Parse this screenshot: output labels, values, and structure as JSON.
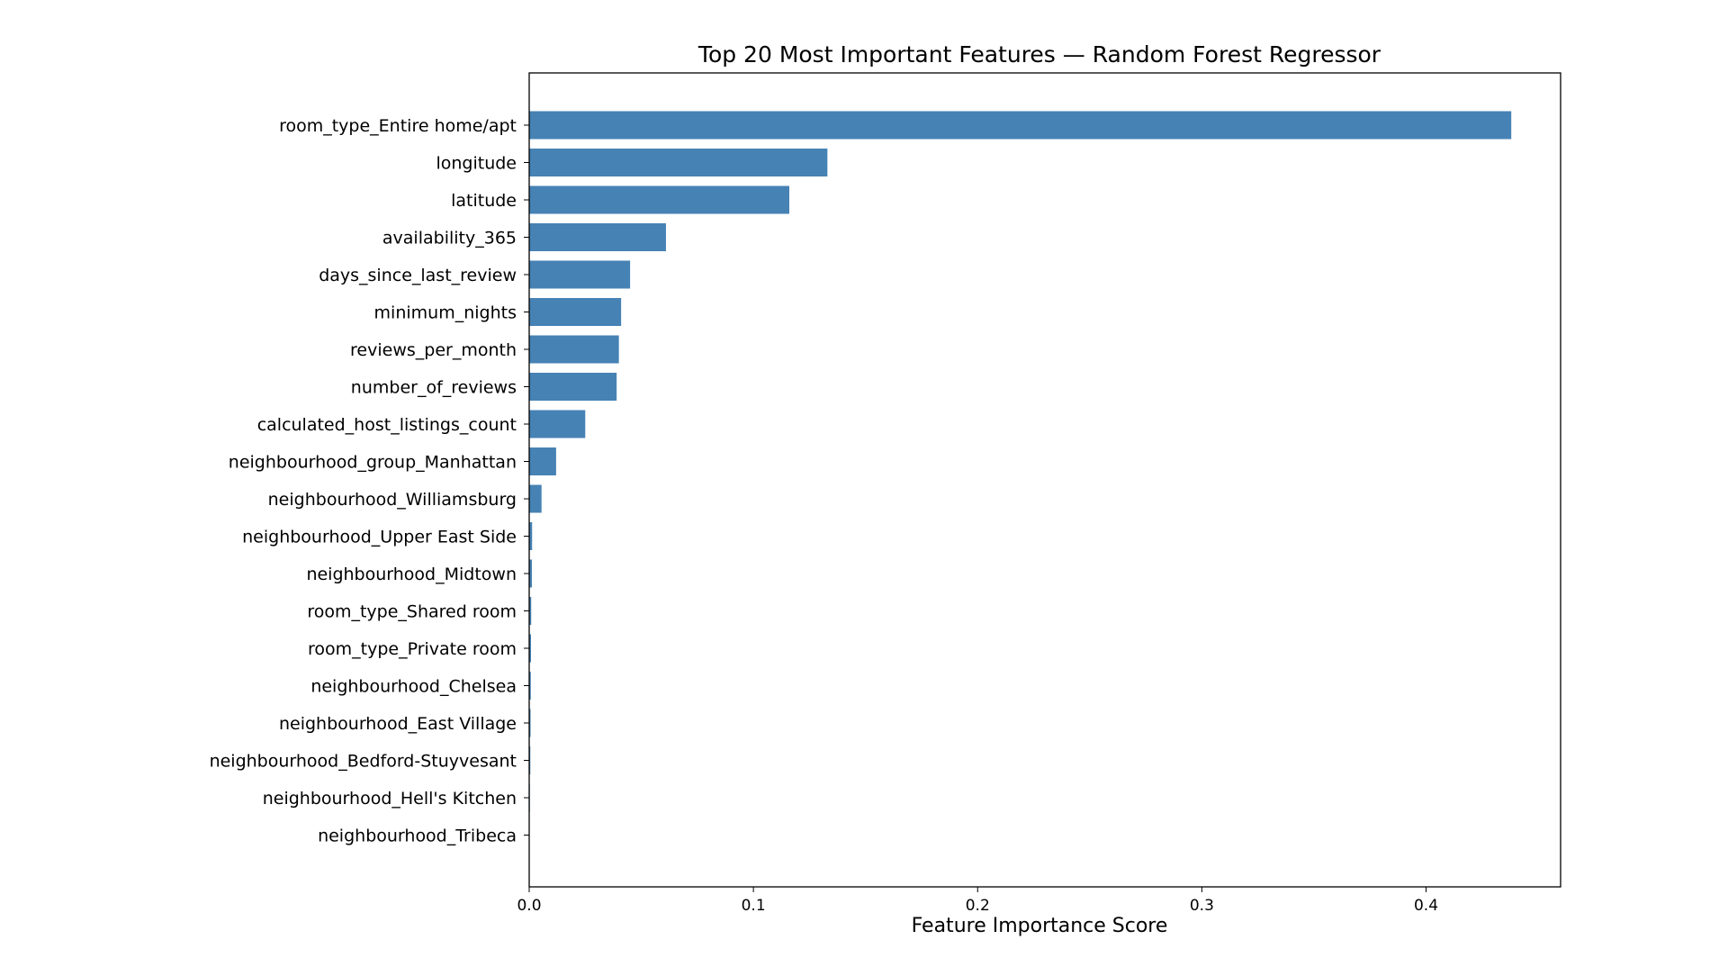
{
  "chart_data": {
    "type": "bar",
    "orientation": "horizontal",
    "title": "Top 20 Most Important Features — Random Forest Regressor",
    "xlabel": "Feature Importance Score",
    "ylabel": "",
    "xlim": [
      0.0,
      0.46
    ],
    "xticks": [
      0.0,
      0.1,
      0.2,
      0.3,
      0.4
    ],
    "xtick_labels": [
      "0.0",
      "0.1",
      "0.2",
      "0.3",
      "0.4"
    ],
    "grid": false,
    "bar_color": "#4682b4",
    "categories": [
      "room_type_Entire home/apt",
      "longitude",
      "latitude",
      "availability_365",
      "days_since_last_review",
      "minimum_nights",
      "reviews_per_month",
      "number_of_reviews",
      "calculated_host_listings_count",
      "neighbourhood_group_Manhattan",
      "neighbourhood_Williamsburg",
      "neighbourhood_Upper East Side",
      "neighbourhood_Midtown",
      "room_type_Shared room",
      "room_type_Private room",
      "neighbourhood_Chelsea",
      "neighbourhood_East Village",
      "neighbourhood_Bedford-Stuyvesant",
      "neighbourhood_Hell's Kitchen",
      "neighbourhood_Tribeca"
    ],
    "values": [
      0.438,
      0.133,
      0.116,
      0.061,
      0.045,
      0.041,
      0.04,
      0.039,
      0.025,
      0.012,
      0.0055,
      0.0013,
      0.0012,
      0.0009,
      0.0008,
      0.0007,
      0.0006,
      0.0005,
      0.0003,
      0.0002
    ]
  }
}
